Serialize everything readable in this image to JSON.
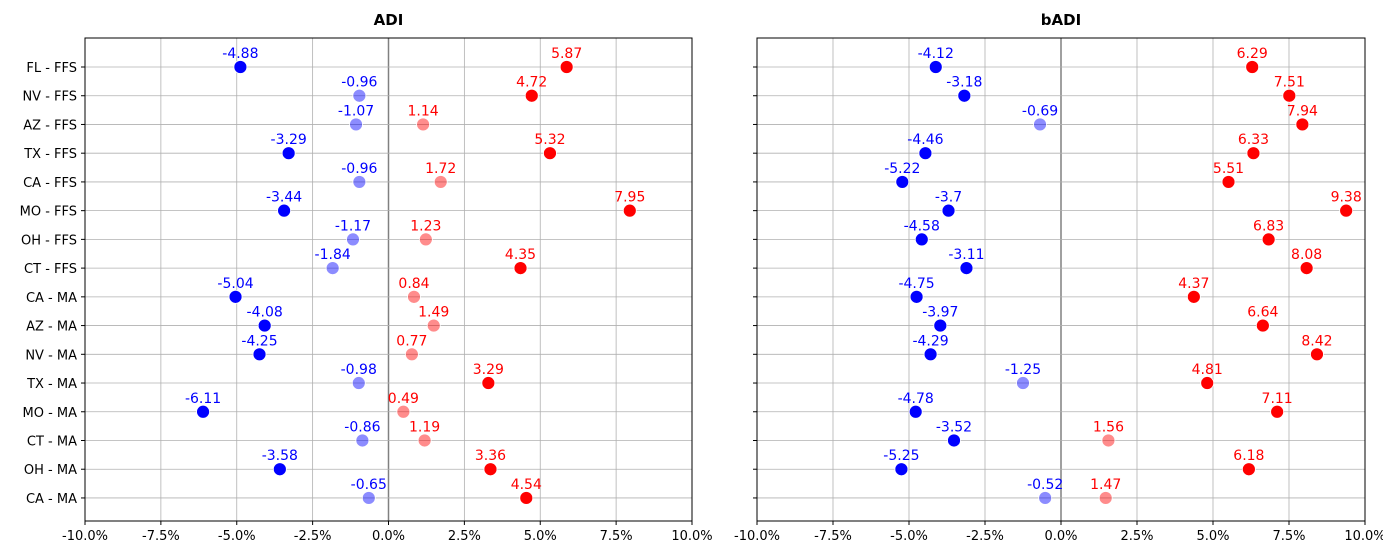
{
  "chart_data": [
    {
      "type": "scatter",
      "title": "ADI",
      "xlim": [
        -10,
        10
      ],
      "x_ticks": [
        -10,
        -7.5,
        -5,
        -2.5,
        0,
        2.5,
        5,
        7.5,
        10
      ],
      "x_tick_labels": [
        "-10.0%",
        "-7.5%",
        "-5.0%",
        "-2.5%",
        "0.0%",
        "2.5%",
        "5.0%",
        "7.5%",
        "10.0%"
      ],
      "categories": [
        "FL - FFS",
        "NV - FFS",
        "AZ - FFS",
        "TX - FFS",
        "CA - FFS",
        "MO - FFS",
        "OH - FFS",
        "CT - FFS",
        "CA - MA",
        "AZ - MA",
        "NV - MA",
        "TX - MA",
        "MO - MA",
        "CT - MA",
        "OH - MA",
        "CA - MA"
      ],
      "series": [
        {
          "color": "#0000ff",
          "values": [
            -4.88,
            -0.96,
            -1.07,
            -3.29,
            -0.96,
            -3.44,
            -1.17,
            -1.84,
            -5.04,
            -4.08,
            -4.25,
            -0.98,
            -6.11,
            -0.86,
            -3.58,
            -0.65
          ],
          "labels": [
            "-4.88",
            "-0.96",
            "-1.07",
            "-3.29",
            "-0.96",
            "-3.44",
            "-1.17",
            "-1.84",
            "-5.04",
            "-4.08",
            "-4.25",
            "-0.98",
            "-6.11",
            "-0.86",
            "-3.58",
            "-0.65"
          ],
          "faded": [
            false,
            true,
            true,
            false,
            true,
            false,
            true,
            true,
            false,
            false,
            false,
            true,
            false,
            true,
            false,
            true
          ]
        },
        {
          "color": "#ff0000",
          "values": [
            5.87,
            4.72,
            1.14,
            5.32,
            1.72,
            7.95,
            1.23,
            4.35,
            0.84,
            1.49,
            0.77,
            3.29,
            0.49,
            1.19,
            3.36,
            4.54
          ],
          "labels": [
            "5.87",
            "4.72",
            "1.14",
            "5.32",
            "1.72",
            "7.95",
            "1.23",
            "4.35",
            "0.84",
            "1.49",
            "0.77",
            "3.29",
            "0.49",
            "1.19",
            "3.36",
            "4.54"
          ],
          "faded": [
            false,
            false,
            true,
            false,
            true,
            false,
            true,
            false,
            true,
            true,
            true,
            false,
            true,
            true,
            false,
            false
          ]
        }
      ]
    },
    {
      "type": "scatter",
      "title": "bADI",
      "xlim": [
        -10,
        10
      ],
      "x_ticks": [
        -10,
        -7.5,
        -5,
        -2.5,
        0,
        2.5,
        5,
        7.5,
        10
      ],
      "x_tick_labels": [
        "-10.0%",
        "-7.5%",
        "-5.0%",
        "-2.5%",
        "0.0%",
        "2.5%",
        "5.0%",
        "7.5%",
        "10.0%"
      ],
      "categories": [
        "FL - FFS",
        "NV - FFS",
        "AZ - FFS",
        "TX - FFS",
        "CA - FFS",
        "MO - FFS",
        "OH - FFS",
        "CT - FFS",
        "CA - MA",
        "AZ - MA",
        "NV - MA",
        "TX - MA",
        "MO - MA",
        "CT - MA",
        "OH - MA",
        "CA - MA"
      ],
      "series": [
        {
          "color": "#0000ff",
          "values": [
            -4.12,
            -3.18,
            -0.69,
            -4.46,
            -5.22,
            -3.7,
            -4.58,
            -3.11,
            -4.75,
            -3.97,
            -4.29,
            -1.25,
            -4.78,
            -3.52,
            -5.25,
            -0.52
          ],
          "labels": [
            "-4.12",
            "-3.18",
            "-0.69",
            "-4.46",
            "-5.22",
            "-3.7",
            "-4.58",
            "-3.11",
            "-4.75",
            "-3.97",
            "-4.29",
            "-1.25",
            "-4.78",
            "-3.52",
            "-5.25",
            "-0.52"
          ],
          "faded": [
            false,
            false,
            true,
            false,
            false,
            false,
            false,
            false,
            false,
            false,
            false,
            true,
            false,
            false,
            false,
            true
          ]
        },
        {
          "color": "#ff0000",
          "values": [
            6.29,
            7.51,
            7.94,
            6.33,
            5.51,
            9.38,
            6.83,
            8.08,
            4.37,
            6.64,
            8.42,
            4.81,
            7.11,
            1.56,
            6.18,
            1.47
          ],
          "labels": [
            "6.29",
            "7.51",
            "7.94",
            "6.33",
            "5.51",
            "9.38",
            "6.83",
            "8.08",
            "4.37",
            "6.64",
            "8.42",
            "4.81",
            "7.11",
            "1.56",
            "6.18",
            "1.47"
          ],
          "faded": [
            false,
            false,
            false,
            false,
            false,
            false,
            false,
            false,
            false,
            false,
            false,
            false,
            false,
            true,
            false,
            true
          ]
        }
      ]
    }
  ]
}
